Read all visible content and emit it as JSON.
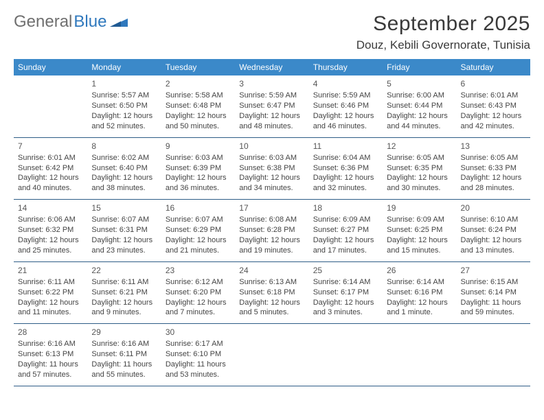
{
  "logo": {
    "text1": "General",
    "text2": "Blue"
  },
  "title": "September 2025",
  "location": "Douz, Kebili Governorate, Tunisia",
  "colors": {
    "header_bg": "#3b89c9",
    "header_text": "#ffffff",
    "row_border": "#2d5c86",
    "body_text": "#444444",
    "title_text": "#3a3a3a",
    "logo_gray": "#6f6f6f",
    "logo_blue": "#2f78bd"
  },
  "calendar": {
    "weekdays": [
      "Sunday",
      "Monday",
      "Tuesday",
      "Wednesday",
      "Thursday",
      "Friday",
      "Saturday"
    ],
    "weeks": [
      [
        {
          "n": "",
          "sunrise": "",
          "sunset": "",
          "daylight": ""
        },
        {
          "n": "1",
          "sunrise": "Sunrise: 5:57 AM",
          "sunset": "Sunset: 6:50 PM",
          "daylight": "Daylight: 12 hours and 52 minutes."
        },
        {
          "n": "2",
          "sunrise": "Sunrise: 5:58 AM",
          "sunset": "Sunset: 6:48 PM",
          "daylight": "Daylight: 12 hours and 50 minutes."
        },
        {
          "n": "3",
          "sunrise": "Sunrise: 5:59 AM",
          "sunset": "Sunset: 6:47 PM",
          "daylight": "Daylight: 12 hours and 48 minutes."
        },
        {
          "n": "4",
          "sunrise": "Sunrise: 5:59 AM",
          "sunset": "Sunset: 6:46 PM",
          "daylight": "Daylight: 12 hours and 46 minutes."
        },
        {
          "n": "5",
          "sunrise": "Sunrise: 6:00 AM",
          "sunset": "Sunset: 6:44 PM",
          "daylight": "Daylight: 12 hours and 44 minutes."
        },
        {
          "n": "6",
          "sunrise": "Sunrise: 6:01 AM",
          "sunset": "Sunset: 6:43 PM",
          "daylight": "Daylight: 12 hours and 42 minutes."
        }
      ],
      [
        {
          "n": "7",
          "sunrise": "Sunrise: 6:01 AM",
          "sunset": "Sunset: 6:42 PM",
          "daylight": "Daylight: 12 hours and 40 minutes."
        },
        {
          "n": "8",
          "sunrise": "Sunrise: 6:02 AM",
          "sunset": "Sunset: 6:40 PM",
          "daylight": "Daylight: 12 hours and 38 minutes."
        },
        {
          "n": "9",
          "sunrise": "Sunrise: 6:03 AM",
          "sunset": "Sunset: 6:39 PM",
          "daylight": "Daylight: 12 hours and 36 minutes."
        },
        {
          "n": "10",
          "sunrise": "Sunrise: 6:03 AM",
          "sunset": "Sunset: 6:38 PM",
          "daylight": "Daylight: 12 hours and 34 minutes."
        },
        {
          "n": "11",
          "sunrise": "Sunrise: 6:04 AM",
          "sunset": "Sunset: 6:36 PM",
          "daylight": "Daylight: 12 hours and 32 minutes."
        },
        {
          "n": "12",
          "sunrise": "Sunrise: 6:05 AM",
          "sunset": "Sunset: 6:35 PM",
          "daylight": "Daylight: 12 hours and 30 minutes."
        },
        {
          "n": "13",
          "sunrise": "Sunrise: 6:05 AM",
          "sunset": "Sunset: 6:33 PM",
          "daylight": "Daylight: 12 hours and 28 minutes."
        }
      ],
      [
        {
          "n": "14",
          "sunrise": "Sunrise: 6:06 AM",
          "sunset": "Sunset: 6:32 PM",
          "daylight": "Daylight: 12 hours and 25 minutes."
        },
        {
          "n": "15",
          "sunrise": "Sunrise: 6:07 AM",
          "sunset": "Sunset: 6:31 PM",
          "daylight": "Daylight: 12 hours and 23 minutes."
        },
        {
          "n": "16",
          "sunrise": "Sunrise: 6:07 AM",
          "sunset": "Sunset: 6:29 PM",
          "daylight": "Daylight: 12 hours and 21 minutes."
        },
        {
          "n": "17",
          "sunrise": "Sunrise: 6:08 AM",
          "sunset": "Sunset: 6:28 PM",
          "daylight": "Daylight: 12 hours and 19 minutes."
        },
        {
          "n": "18",
          "sunrise": "Sunrise: 6:09 AM",
          "sunset": "Sunset: 6:27 PM",
          "daylight": "Daylight: 12 hours and 17 minutes."
        },
        {
          "n": "19",
          "sunrise": "Sunrise: 6:09 AM",
          "sunset": "Sunset: 6:25 PM",
          "daylight": "Daylight: 12 hours and 15 minutes."
        },
        {
          "n": "20",
          "sunrise": "Sunrise: 6:10 AM",
          "sunset": "Sunset: 6:24 PM",
          "daylight": "Daylight: 12 hours and 13 minutes."
        }
      ],
      [
        {
          "n": "21",
          "sunrise": "Sunrise: 6:11 AM",
          "sunset": "Sunset: 6:22 PM",
          "daylight": "Daylight: 12 hours and 11 minutes."
        },
        {
          "n": "22",
          "sunrise": "Sunrise: 6:11 AM",
          "sunset": "Sunset: 6:21 PM",
          "daylight": "Daylight: 12 hours and 9 minutes."
        },
        {
          "n": "23",
          "sunrise": "Sunrise: 6:12 AM",
          "sunset": "Sunset: 6:20 PM",
          "daylight": "Daylight: 12 hours and 7 minutes."
        },
        {
          "n": "24",
          "sunrise": "Sunrise: 6:13 AM",
          "sunset": "Sunset: 6:18 PM",
          "daylight": "Daylight: 12 hours and 5 minutes."
        },
        {
          "n": "25",
          "sunrise": "Sunrise: 6:14 AM",
          "sunset": "Sunset: 6:17 PM",
          "daylight": "Daylight: 12 hours and 3 minutes."
        },
        {
          "n": "26",
          "sunrise": "Sunrise: 6:14 AM",
          "sunset": "Sunset: 6:16 PM",
          "daylight": "Daylight: 12 hours and 1 minute."
        },
        {
          "n": "27",
          "sunrise": "Sunrise: 6:15 AM",
          "sunset": "Sunset: 6:14 PM",
          "daylight": "Daylight: 11 hours and 59 minutes."
        }
      ],
      [
        {
          "n": "28",
          "sunrise": "Sunrise: 6:16 AM",
          "sunset": "Sunset: 6:13 PM",
          "daylight": "Daylight: 11 hours and 57 minutes."
        },
        {
          "n": "29",
          "sunrise": "Sunrise: 6:16 AM",
          "sunset": "Sunset: 6:11 PM",
          "daylight": "Daylight: 11 hours and 55 minutes."
        },
        {
          "n": "30",
          "sunrise": "Sunrise: 6:17 AM",
          "sunset": "Sunset: 6:10 PM",
          "daylight": "Daylight: 11 hours and 53 minutes."
        },
        {
          "n": "",
          "sunrise": "",
          "sunset": "",
          "daylight": ""
        },
        {
          "n": "",
          "sunrise": "",
          "sunset": "",
          "daylight": ""
        },
        {
          "n": "",
          "sunrise": "",
          "sunset": "",
          "daylight": ""
        },
        {
          "n": "",
          "sunrise": "",
          "sunset": "",
          "daylight": ""
        }
      ]
    ]
  }
}
